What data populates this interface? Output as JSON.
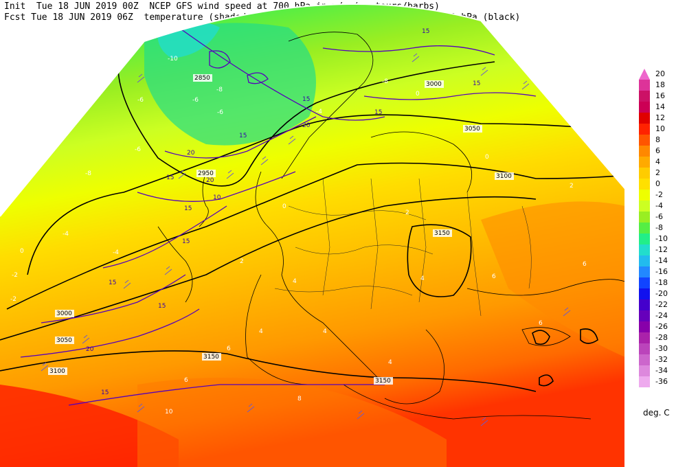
{
  "header": {
    "init_line": "Init  Tue 18 JUN 2019 00Z  NCEP GFS wind speed at 700 hPa in m/s (contours/barbs)",
    "fcst_line": "Fcst Tue 18 JUN 2019 06Z  temperature (shaded/dotted) and geopotential height at 700 hPa (black)"
  },
  "legend": {
    "units": "deg. C",
    "labels": [
      "20",
      "18",
      "16",
      "14",
      "12",
      "10",
      "8",
      "6",
      "4",
      "2",
      "0",
      "-2",
      "-4",
      "-6",
      "-8",
      "-10",
      "-12",
      "-14",
      "-16",
      "-18",
      "-20",
      "-22",
      "-24",
      "-26",
      "-28",
      "-30",
      "-32",
      "-34",
      "-36"
    ],
    "colors": [
      "#ee66cc",
      "#dd3399",
      "#cc1166",
      "#cc0055",
      "#e00000",
      "#ff2200",
      "#ff5500",
      "#ff8800",
      "#ffaa00",
      "#ffcc00",
      "#ffe000",
      "#eeff00",
      "#ccff22",
      "#99ee22",
      "#55ee44",
      "#22ee88",
      "#22ddcc",
      "#22bbee",
      "#2288ff",
      "#1144ff",
      "#1111ee",
      "#4400cc",
      "#6600bb",
      "#8800aa",
      "#aa22aa",
      "#bb44bb",
      "#cc66cc",
      "#dd88dd",
      "#eeaaee"
    ]
  },
  "height_labels": [
    "2850",
    "2950",
    "3000",
    "3050",
    "3100",
    "3150",
    "3000",
    "3050",
    "3100",
    "3150",
    "3150"
  ],
  "wind_labels": [
    "15",
    "15",
    "15",
    "15",
    "15",
    "15",
    "20",
    "20",
    "20",
    "10",
    "15",
    "15",
    "15",
    "15",
    "20",
    "15"
  ],
  "temp_labels": [
    "-10",
    "-8",
    "-6",
    "-6",
    "-6",
    "-4",
    "-4",
    "-2",
    "-2",
    "0",
    "0",
    "2",
    "2",
    "4",
    "4",
    "4",
    "4",
    "6",
    "6",
    "6",
    "8",
    "10",
    "-8",
    "-4",
    "0",
    "0",
    "2",
    "4",
    "6",
    "6",
    "-6",
    "-8"
  ]
}
